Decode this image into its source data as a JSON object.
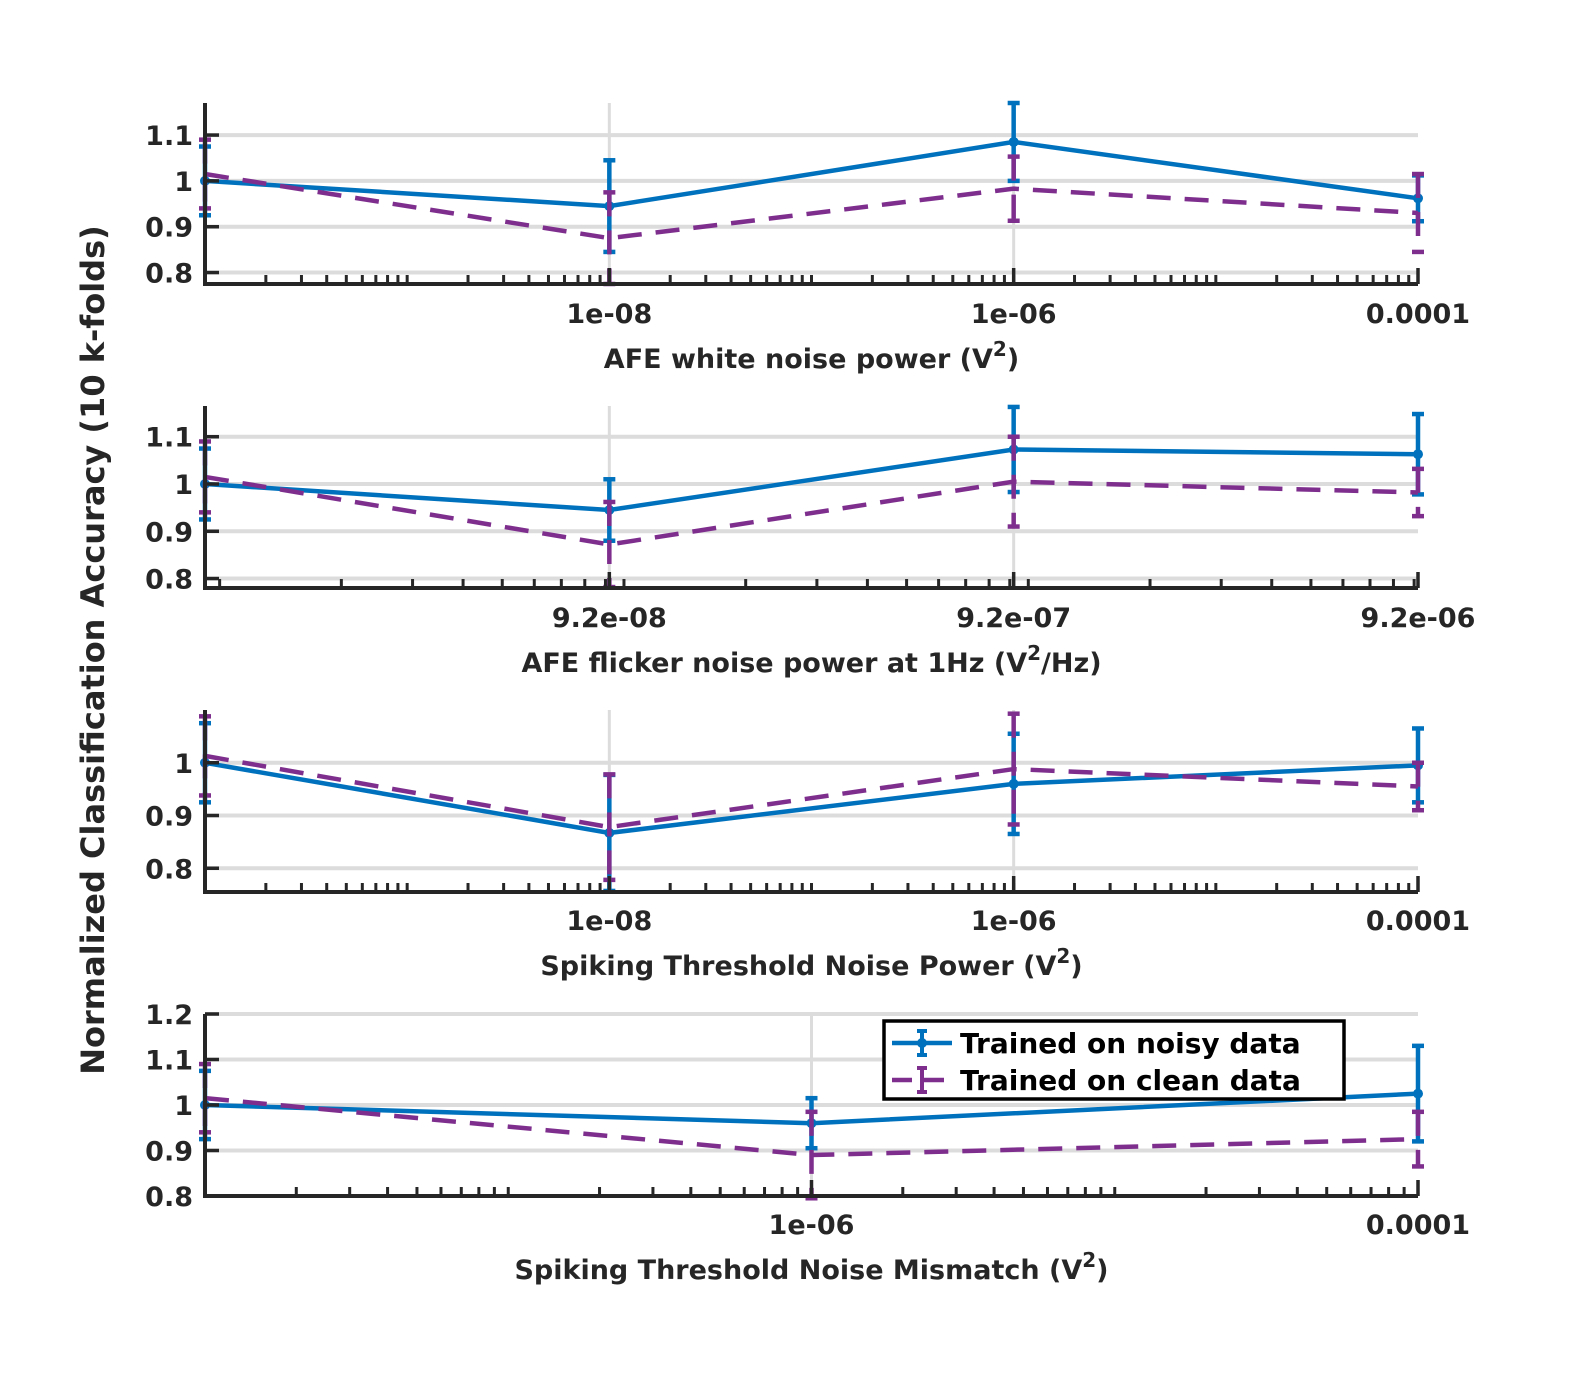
{
  "figure": {
    "ylabel": "Normalized Classification Accuracy (10 k-folds)",
    "legend": {
      "placement": "top-right of bottom panel",
      "entries": [
        "Trained on noisy data",
        "Trained on clean data"
      ]
    },
    "colors": {
      "noisy": "#0072BD",
      "clean": "#7E2F8E",
      "grid": "#dcdcdc",
      "axis": "#262626"
    }
  },
  "chart_data": [
    {
      "type": "line",
      "xscale": "log",
      "xlabel_main": "AFE white noise power (V",
      "xlabel_sup": "2",
      "xlabel_tail": ")",
      "xlim": [
        1e-10,
        0.0001
      ],
      "ylim": [
        0.775,
        1.17
      ],
      "yticks": [
        0.8,
        0.9,
        1,
        1.1
      ],
      "ytick_labels": [
        "0.8",
        "0.9",
        "1",
        "1.1"
      ],
      "xticks": [
        1e-08,
        1e-06,
        0.0001
      ],
      "xtick_labels": [
        "1e-08",
        "1e-06",
        "0.0001"
      ],
      "grid": true,
      "series": [
        {
          "name": "Trained on noisy data",
          "key": "noisy",
          "x": [
            1e-10,
            1e-08,
            1e-06,
            0.0001
          ],
          "y": [
            1.0,
            0.945,
            1.085,
            0.962
          ],
          "err": [
            0.075,
            0.1,
            0.085,
            0.05
          ]
        },
        {
          "name": "Trained on clean data",
          "key": "clean",
          "x": [
            1e-10,
            1e-08,
            1e-06,
            0.0001
          ],
          "y": [
            1.015,
            0.875,
            0.983,
            0.93
          ],
          "err": [
            0.075,
            0.1,
            0.07,
            0.085
          ]
        }
      ]
    },
    {
      "type": "line",
      "xscale": "log",
      "xlabel_main": "AFE flicker noise power at 1Hz (V",
      "xlabel_sup": "2",
      "xlabel_tail": "/Hz)",
      "xlim": [
        9.2e-09,
        9.2e-06
      ],
      "ylim": [
        0.78,
        1.165
      ],
      "yticks": [
        0.8,
        0.9,
        1,
        1.1
      ],
      "ytick_labels": [
        "0.8",
        "0.9",
        "1",
        "1.1"
      ],
      "xticks": [
        9.2e-08,
        9.2e-07,
        9.2e-06
      ],
      "xtick_labels": [
        "9.2e-08",
        "9.2e-07",
        "9.2e-06"
      ],
      "grid": true,
      "series": [
        {
          "name": "Trained on noisy data",
          "key": "noisy",
          "x": [
            9.2e-09,
            9.2e-08,
            9.2e-07,
            9.2e-06
          ],
          "y": [
            1.0,
            0.945,
            1.073,
            1.063
          ],
          "err": [
            0.075,
            0.065,
            0.09,
            0.085
          ]
        },
        {
          "name": "Trained on clean data",
          "key": "clean",
          "x": [
            9.2e-09,
            9.2e-08,
            9.2e-07,
            9.2e-06
          ],
          "y": [
            1.015,
            0.872,
            1.005,
            0.982
          ],
          "err": [
            0.075,
            0.09,
            0.095,
            0.05
          ]
        }
      ]
    },
    {
      "type": "line",
      "xscale": "log",
      "xlabel_main": "Spiking Threshold Noise Power (V",
      "xlabel_sup": "2",
      "xlabel_tail": ")",
      "xlim": [
        1e-10,
        0.0001
      ],
      "ylim": [
        0.755,
        1.1
      ],
      "yticks": [
        0.8,
        0.9,
        1
      ],
      "ytick_labels": [
        "0.8",
        "0.9",
        "1"
      ],
      "xticks": [
        1e-08,
        1e-06,
        0.0001
      ],
      "xtick_labels": [
        "1e-08",
        "1e-06",
        "0.0001"
      ],
      "grid": true,
      "series": [
        {
          "name": "Trained on noisy data",
          "key": "noisy",
          "x": [
            1e-10,
            1e-08,
            1e-06,
            0.0001
          ],
          "y": [
            1.0,
            0.867,
            0.96,
            0.995
          ],
          "err": [
            0.075,
            0.11,
            0.095,
            0.07
          ]
        },
        {
          "name": "Trained on clean data",
          "key": "clean",
          "x": [
            1e-10,
            1e-08,
            1e-06,
            0.0001
          ],
          "y": [
            1.013,
            0.878,
            0.988,
            0.955
          ],
          "err": [
            0.075,
            0.1,
            0.105,
            0.045
          ]
        }
      ]
    },
    {
      "type": "line",
      "xscale": "log",
      "xlabel_main": "Spiking Threshold Noise Mismatch (V",
      "xlabel_sup": "2",
      "xlabel_tail": ")",
      "xlim": [
        1e-08,
        0.0001
      ],
      "ylim": [
        0.8,
        1.2
      ],
      "yticks": [
        0.8,
        0.9,
        1,
        1.1,
        1.2
      ],
      "ytick_labels": [
        "0.8",
        "0.9",
        "1",
        "1.1",
        "1.2"
      ],
      "xticks": [
        1e-06,
        0.0001
      ],
      "xtick_labels": [
        "1e-06",
        "0.0001"
      ],
      "grid": true,
      "series": [
        {
          "name": "Trained on noisy data",
          "key": "noisy",
          "x": [
            1e-08,
            1e-06,
            0.0001
          ],
          "y": [
            1.0,
            0.96,
            1.025
          ],
          "err": [
            0.075,
            0.055,
            0.105
          ]
        },
        {
          "name": "Trained on clean data",
          "key": "clean",
          "x": [
            1e-08,
            1e-06,
            0.0001
          ],
          "y": [
            1.015,
            0.89,
            0.925
          ],
          "err": [
            0.075,
            0.095,
            0.06
          ]
        }
      ]
    }
  ]
}
